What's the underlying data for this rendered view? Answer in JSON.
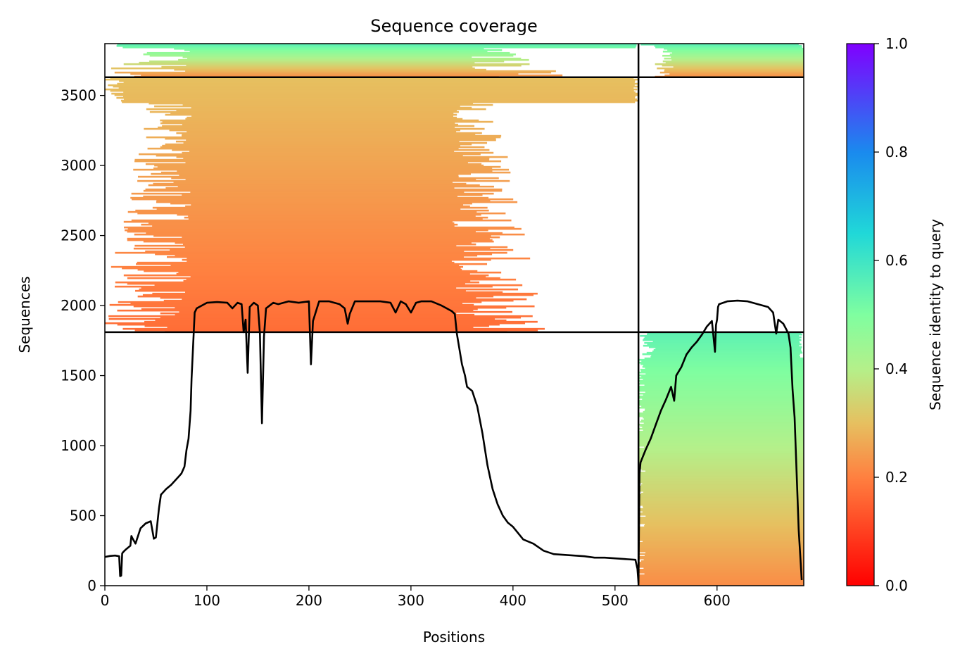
{
  "chart_data": {
    "type": "heatmap",
    "title": "Sequence coverage",
    "xlabel": "Positions",
    "ylabel": "Sequences",
    "xlim": [
      0,
      685
    ],
    "ylim": [
      0,
      3870
    ],
    "xticks": [
      0,
      100,
      200,
      300,
      400,
      500,
      600
    ],
    "yticks": [
      0,
      500,
      1000,
      1500,
      2000,
      2500,
      3000,
      3500
    ],
    "colorbar": {
      "label": "Sequence identity to query",
      "ticks": [
        0.0,
        0.2,
        0.4,
        0.6,
        0.8,
        1.0
      ],
      "range": [
        0.0,
        1.0
      ],
      "colormap": "rainbow_r"
    },
    "chain_break_x": 523,
    "row_dividers": [
      1810,
      3630
    ],
    "blocks": [
      {
        "name": "block-top-left",
        "x_range": [
          0,
          523
        ],
        "y_range": [
          3630,
          3870
        ],
        "dense_x": [
          85,
          358
        ],
        "identity_bottom": 0.22,
        "identity_top": 0.55
      },
      {
        "name": "block-top-right",
        "x_range": [
          523,
          685
        ],
        "y_range": [
          3630,
          3870
        ],
        "dense_x": [
          560,
          685
        ],
        "identity_bottom": 0.22,
        "identity_top": 0.55
      },
      {
        "name": "block-main",
        "x_range": [
          0,
          523
        ],
        "y_range": [
          1810,
          3630
        ],
        "dense_x": [
          85,
          340
        ],
        "identity_bottom": 0.17,
        "identity_top": 0.3
      },
      {
        "name": "block-bottom-right",
        "x_range": [
          523,
          685
        ],
        "y_range": [
          0,
          1810
        ],
        "dense_x": [
          530,
          685
        ],
        "identity_bottom": 0.22,
        "identity_top": 0.55
      }
    ],
    "coverage_line": {
      "color": "#000000",
      "x": [
        0,
        5,
        10,
        14,
        15,
        16,
        17,
        18,
        20,
        25,
        26,
        27,
        30,
        35,
        40,
        45,
        48,
        50,
        53,
        55,
        60,
        65,
        70,
        75,
        78,
        80,
        82,
        84,
        85,
        88,
        90,
        100,
        110,
        120,
        125,
        130,
        134,
        136,
        138,
        140,
        142,
        146,
        150,
        152,
        154,
        156,
        158,
        165,
        170,
        180,
        190,
        200,
        202,
        204,
        210,
        220,
        230,
        235,
        238,
        240,
        245,
        260,
        270,
        280,
        285,
        290,
        295,
        300,
        305,
        310,
        320,
        330,
        335,
        340,
        343,
        345,
        350,
        353,
        355,
        360,
        365,
        370,
        375,
        380,
        385,
        390,
        395,
        400,
        410,
        420,
        430,
        440,
        450,
        460,
        470,
        480,
        490,
        500,
        510,
        520,
        522,
        523,
        524,
        525,
        530,
        535,
        540,
        545,
        550,
        555,
        558,
        560,
        565,
        570,
        575,
        580,
        585,
        590,
        595,
        598,
        599,
        600,
        601,
        602,
        610,
        620,
        630,
        640,
        650,
        655,
        658,
        660,
        665,
        670,
        672,
        674,
        676,
        678,
        680,
        683
      ],
      "y": [
        205,
        212,
        215,
        210,
        68,
        72,
        230,
        240,
        255,
        285,
        355,
        340,
        300,
        410,
        445,
        460,
        335,
        345,
        550,
        650,
        690,
        720,
        760,
        800,
        850,
        970,
        1050,
        1250,
        1480,
        1950,
        1980,
        2020,
        2025,
        2020,
        1980,
        2020,
        2010,
        1810,
        1900,
        1520,
        1990,
        2020,
        2000,
        1800,
        1160,
        1780,
        1980,
        2020,
        2010,
        2030,
        2020,
        2030,
        1580,
        1890,
        2030,
        2030,
        2010,
        1980,
        1870,
        1940,
        2030,
        2030,
        2030,
        2020,
        1950,
        2030,
        2010,
        1950,
        2020,
        2030,
        2030,
        2000,
        1980,
        1960,
        1940,
        1800,
        1580,
        1500,
        1420,
        1390,
        1280,
        1090,
        860,
        690,
        580,
        500,
        450,
        420,
        330,
        300,
        250,
        225,
        220,
        215,
        210,
        200,
        200,
        195,
        190,
        185,
        120,
        20,
        800,
        880,
        970,
        1050,
        1150,
        1250,
        1330,
        1420,
        1320,
        1500,
        1560,
        1650,
        1700,
        1740,
        1790,
        1850,
        1890,
        1670,
        1860,
        1900,
        1990,
        2010,
        2030,
        2035,
        2030,
        2010,
        1990,
        1950,
        1800,
        1900,
        1870,
        1800,
        1700,
        1400,
        1200,
        800,
        400,
        40
      ]
    }
  }
}
